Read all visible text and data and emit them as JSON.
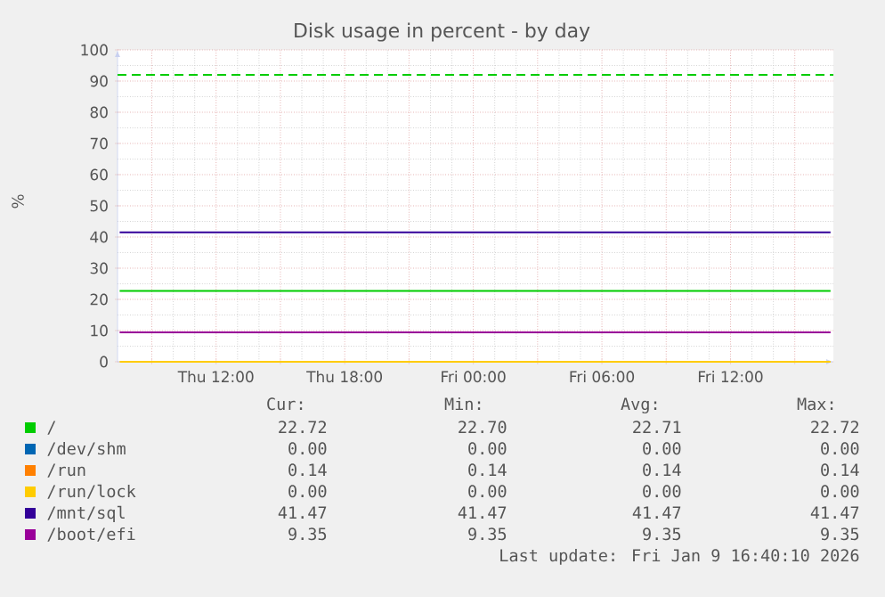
{
  "chart_data": {
    "type": "line",
    "title": "Disk usage in percent - by day",
    "ylabel": "%",
    "xlim": [
      "2026-01-08T07:24",
      "2026-01-09T16:48"
    ],
    "xticks": [
      {
        "value": "2026-01-08T09:00",
        "label": null
      },
      {
        "value": "2026-01-08T12:00",
        "label": "Thu 12:00"
      },
      {
        "value": "2026-01-08T15:00",
        "label": null
      },
      {
        "value": "2026-01-08T18:00",
        "label": "Thu 18:00"
      },
      {
        "value": "2026-01-08T21:00",
        "label": null
      },
      {
        "value": "2026-01-09T00:00",
        "label": "Fri 00:00"
      },
      {
        "value": "2026-01-09T03:00",
        "label": null
      },
      {
        "value": "2026-01-09T06:00",
        "label": "Fri 06:00"
      },
      {
        "value": "2026-01-09T09:00",
        "label": null
      },
      {
        "value": "2026-01-09T12:00",
        "label": "Fri 12:00"
      },
      {
        "value": "2026-01-09T15:00",
        "label": null
      }
    ],
    "ylim": [
      0,
      100
    ],
    "yticks": [
      0,
      10,
      20,
      30,
      40,
      50,
      60,
      70,
      80,
      90,
      100
    ],
    "grid": true,
    "legend": "bottom",
    "line_style": "solid",
    "marker": "none",
    "series": [
      {
        "name": "/",
        "color": "#00cc00",
        "x": [
          "2026-01-08T07:30",
          "2026-01-09T16:40"
        ],
        "values": [
          22.7,
          22.7
        ]
      },
      {
        "name": "/dev/shm",
        "color": "#0066b3",
        "values": [
          null,
          null
        ]
      },
      {
        "name": "/run",
        "color": "#ff8000",
        "values": [
          null,
          null
        ]
      },
      {
        "name": "/run/lock",
        "color": "#ffcc00",
        "x": [
          "2026-01-08T07:30",
          "2026-01-09T16:40"
        ],
        "values": [
          0,
          0
        ]
      },
      {
        "name": "/mnt/sql",
        "color": "#330099",
        "x": [
          "2026-01-08T07:30",
          "2026-01-09T16:40"
        ],
        "values": [
          41.5,
          41.5
        ]
      },
      {
        "name": "/boot/efi",
        "color": "#990099",
        "x": [
          "2026-01-08T07:30",
          "2026-01-09T16:40"
        ],
        "values": [
          9.4,
          9.4
        ]
      }
    ],
    "ref_lines": [
      {
        "axis": "y",
        "value": 92,
        "color": "#00cc00",
        "line_style": "dashed"
      }
    ],
    "annotations": [
      "Cur:",
      "Min:",
      "Avg:",
      "Max:",
      "22.72",
      "22.70",
      "22.71",
      "22.72",
      "0.00",
      "0.00",
      "0.00",
      "0.00",
      "0.14",
      "0.14",
      "0.14",
      "0.14",
      "0.00",
      "0.00",
      "0.00",
      "0.00",
      "41.47",
      "41.47",
      "41.47",
      "41.47",
      "9.35",
      "9.35",
      "9.35",
      "9.35",
      "Last update: Fri Jan  9 16:40:10 2026"
    ]
  }
}
